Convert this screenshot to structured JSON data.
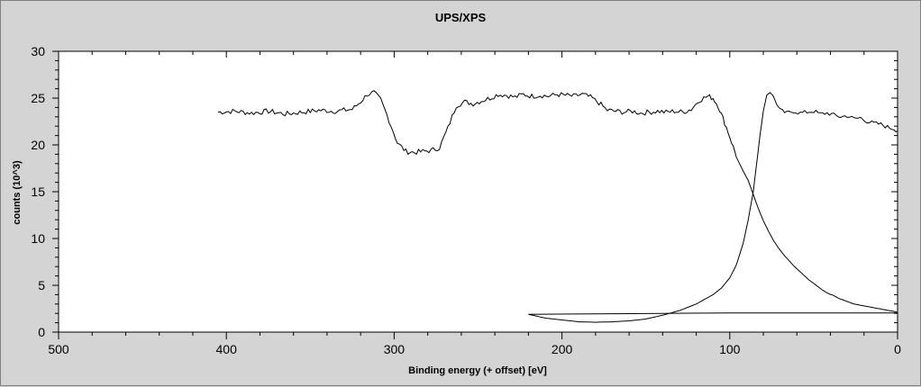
{
  "chart_data": {
    "type": "line",
    "title": "UPS/XPS",
    "xlabel": "Binding energy (+ offset) [eV]",
    "ylabel": "counts (10^3)",
    "xlim": [
      500,
      0
    ],
    "ylim": [
      0,
      30
    ],
    "x_ticks": [
      500,
      400,
      300,
      200,
      100,
      0
    ],
    "y_ticks": [
      0,
      5,
      10,
      15,
      20,
      25,
      30
    ],
    "grid": false,
    "legend": "none",
    "series": [
      {
        "color": "#000000",
        "x": [
          405,
          395,
          385,
          375,
          365,
          355,
          345,
          335,
          325,
          320,
          316,
          312,
          308,
          303,
          298,
          293,
          288,
          283,
          278,
          273,
          268,
          263,
          258,
          253,
          248,
          243,
          238,
          233,
          228,
          223,
          218,
          213,
          208,
          203,
          198,
          193,
          188,
          183,
          178,
          173,
          168,
          163,
          158,
          153,
          148,
          143,
          138,
          133,
          128,
          123,
          118,
          113,
          110,
          107,
          104,
          101,
          98,
          95,
          92,
          89,
          86,
          83,
          80,
          77,
          74,
          71,
          68,
          65,
          62,
          59,
          56,
          53,
          50,
          47,
          44,
          41,
          38,
          35,
          32,
          29,
          26,
          23,
          20,
          17,
          14,
          11,
          8,
          5,
          2,
          0
        ],
        "y": [
          23.5,
          23.6,
          23.4,
          23.6,
          23.3,
          23.5,
          23.7,
          23.6,
          23.8,
          24.6,
          25.4,
          25.6,
          24.8,
          22.6,
          20.2,
          19.3,
          19.2,
          19.3,
          19.4,
          19.7,
          21.8,
          24.2,
          24.6,
          24.4,
          24.7,
          25.0,
          25.4,
          25.3,
          25.1,
          25.4,
          25.2,
          25.3,
          25.2,
          25.4,
          25.3,
          25.2,
          25.4,
          25.1,
          24.5,
          23.7,
          23.6,
          23.5,
          23.6,
          23.4,
          23.5,
          23.6,
          23.5,
          23.6,
          23.5,
          23.8,
          24.8,
          25.2,
          25.0,
          24.2,
          22.8,
          21.4,
          19.8,
          18.3,
          17.2,
          16.2,
          14.7,
          13.2,
          11.9,
          10.8,
          9.8,
          9.0,
          8.3,
          7.7,
          7.1,
          6.6,
          6.1,
          5.6,
          5.2,
          4.8,
          4.4,
          4.1,
          3.9,
          3.6,
          3.4,
          3.2,
          3.0,
          2.9,
          2.8,
          2.7,
          2.6,
          2.5,
          2.4,
          2.3,
          2.2,
          2.1
        ]
      },
      {
        "color": "#000000",
        "x": [
          220,
          210,
          200,
          190,
          180,
          170,
          160,
          150,
          140,
          130,
          120,
          110,
          105,
          100,
          96,
          92,
          89,
          86,
          84,
          82,
          80,
          78,
          76,
          74,
          72,
          70,
          66,
          62,
          58,
          54,
          50,
          46,
          42,
          38,
          34,
          30,
          26,
          22,
          18,
          14,
          10,
          6,
          2,
          0
        ],
        "y": [
          1.9,
          1.5,
          1.3,
          1.1,
          1.05,
          1.1,
          1.2,
          1.4,
          1.8,
          2.3,
          3.0,
          4.0,
          4.7,
          5.8,
          7.2,
          9.5,
          12.0,
          15.0,
          18.0,
          21.0,
          23.6,
          25.3,
          25.6,
          25.2,
          24.3,
          23.7,
          23.4,
          23.6,
          23.4,
          23.5,
          23.6,
          23.3,
          23.4,
          23.2,
          23.0,
          23.1,
          22.8,
          22.9,
          22.5,
          22.3,
          22.2,
          21.9,
          21.7,
          21.5
        ]
      },
      {
        "color": "#000000",
        "x": [
          220,
          180,
          140,
          100,
          60,
          20,
          0
        ],
        "y": [
          1.9,
          1.95,
          2.0,
          2.05,
          2.05,
          2.05,
          2.05
        ]
      }
    ]
  }
}
